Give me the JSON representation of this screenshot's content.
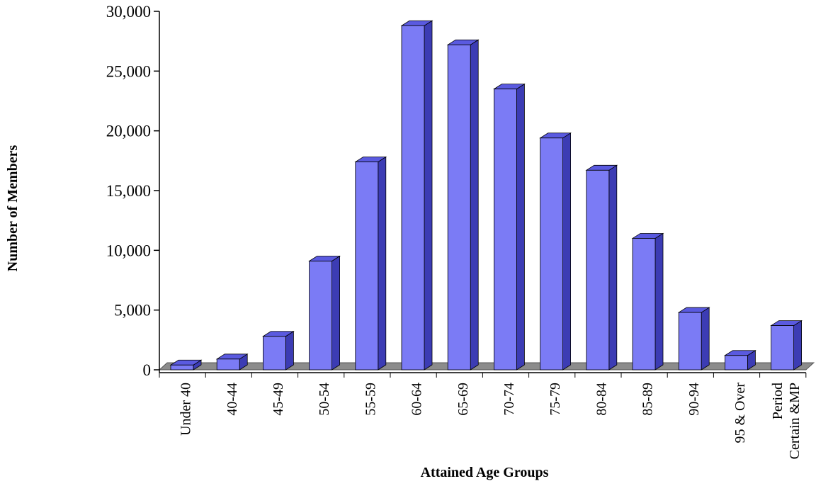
{
  "chart_data": {
    "type": "bar",
    "title": "",
    "xlabel": "Attained Age Groups",
    "ylabel": "Number of Members",
    "categories": [
      [
        "Under 40"
      ],
      [
        "40-44"
      ],
      [
        "45-49"
      ],
      [
        "50-54"
      ],
      [
        "55-59"
      ],
      [
        "60-64"
      ],
      [
        "65-69"
      ],
      [
        "70-74"
      ],
      [
        "75-79"
      ],
      [
        "80-84"
      ],
      [
        "85-89"
      ],
      [
        "90-94"
      ],
      [
        "95 & Over"
      ],
      [
        "Period",
        "Certain &MP"
      ]
    ],
    "values": [
      400,
      900,
      2800,
      9100,
      17400,
      28800,
      27200,
      23500,
      19400,
      16700,
      11000,
      4800,
      1200,
      3700
    ],
    "ylim": [
      0,
      30000
    ],
    "yticks": [
      0,
      5000,
      10000,
      15000,
      20000,
      25000,
      30000
    ],
    "ytick_labels": [
      "0",
      "5,000",
      "10,000",
      "15,000",
      "20,000",
      "25,000",
      "30,000"
    ],
    "grid": false,
    "legend": "none",
    "colors": {
      "bar_front": "#7b7bf5",
      "bar_top": "#5a5ae0",
      "bar_side": "#3c3cb4",
      "floor": "#8c8c8c"
    }
  }
}
